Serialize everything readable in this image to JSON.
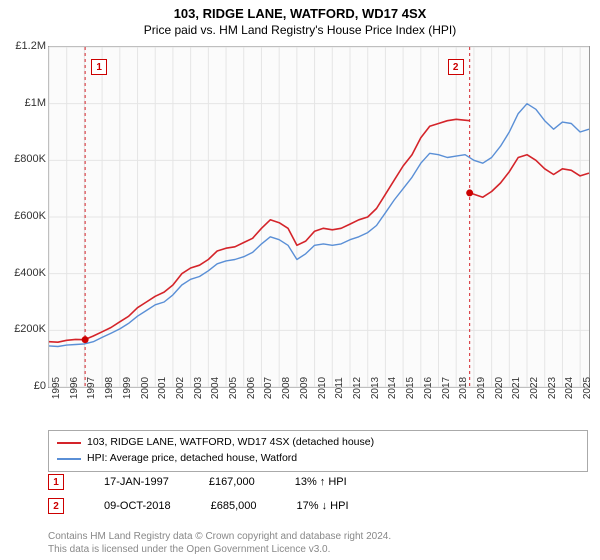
{
  "title": "103, RIDGE LANE, WATFORD, WD17 4SX",
  "subtitle": "Price paid vs. HM Land Registry's House Price Index (HPI)",
  "chart": {
    "type": "line",
    "background_color": "#fbfbfb",
    "grid_color": "#e5e5e5",
    "xlim": [
      1995,
      2025.5
    ],
    "ylim": [
      0,
      1200000
    ],
    "yticks": [
      0,
      200000,
      400000,
      600000,
      800000,
      1000000,
      1200000
    ],
    "ytick_labels": [
      "£0",
      "£200K",
      "£400K",
      "£600K",
      "£800K",
      "£1M",
      "£1.2M"
    ],
    "xticks": [
      1995,
      1996,
      1997,
      1998,
      1999,
      2000,
      2001,
      2002,
      2003,
      2004,
      2005,
      2006,
      2007,
      2008,
      2009,
      2010,
      2011,
      2012,
      2013,
      2014,
      2015,
      2016,
      2017,
      2018,
      2019,
      2020,
      2021,
      2022,
      2023,
      2024,
      2025
    ],
    "xtick_labels": [
      "1995",
      "1996",
      "1997",
      "1998",
      "1999",
      "2000",
      "2001",
      "2002",
      "2003",
      "2004",
      "2005",
      "2006",
      "2007",
      "2008",
      "2009",
      "2010",
      "2011",
      "2012",
      "2013",
      "2014",
      "2015",
      "2016",
      "2017",
      "2018",
      "2019",
      "2020",
      "2021",
      "2022",
      "2023",
      "2024",
      "2025"
    ],
    "ytick_fontsize": 11,
    "xtick_fontsize": 10,
    "series": [
      {
        "name": "103, RIDGE LANE, WATFORD, WD17 4SX (detached house)",
        "color": "#d4242a",
        "width": 1.6,
        "x": [
          1995,
          1995.5,
          1996,
          1996.5,
          1997,
          1997.5,
          1998,
          1998.5,
          1999,
          1999.5,
          2000,
          2000.5,
          2001,
          2001.5,
          2002,
          2002.5,
          2003,
          2003.5,
          2004,
          2004.5,
          2005,
          2005.5,
          2006,
          2006.5,
          2007,
          2007.5,
          2008,
          2008.5,
          2009,
          2009.5,
          2010,
          2010.5,
          2011,
          2011.5,
          2012,
          2012.5,
          2013,
          2013.5,
          2014,
          2014.5,
          2015,
          2015.5,
          2016,
          2016.5,
          2017,
          2017.5,
          2018,
          2018.76
        ],
        "y": [
          160000,
          158000,
          165000,
          168000,
          167000,
          180000,
          195000,
          210000,
          230000,
          250000,
          280000,
          300000,
          320000,
          335000,
          360000,
          400000,
          420000,
          430000,
          450000,
          480000,
          490000,
          495000,
          510000,
          525000,
          560000,
          590000,
          580000,
          560000,
          500000,
          515000,
          550000,
          560000,
          555000,
          560000,
          575000,
          590000,
          600000,
          630000,
          680000,
          730000,
          780000,
          820000,
          880000,
          920000,
          930000,
          940000,
          945000,
          940000
        ]
      },
      {
        "name": "HPI: Average price, detached house, Watford",
        "color": "#5a8fd6",
        "width": 1.4,
        "x": [
          1995,
          1995.5,
          1996,
          1996.5,
          1997,
          1997.5,
          1998,
          1998.5,
          1999,
          1999.5,
          2000,
          2000.5,
          2001,
          2001.5,
          2002,
          2002.5,
          2003,
          2003.5,
          2004,
          2004.5,
          2005,
          2005.5,
          2006,
          2006.5,
          2007,
          2007.5,
          2008,
          2008.5,
          2009,
          2009.5,
          2010,
          2010.5,
          2011,
          2011.5,
          2012,
          2012.5,
          2013,
          2013.5,
          2014,
          2014.5,
          2015,
          2015.5,
          2016,
          2016.5,
          2017,
          2017.5,
          2018,
          2018.5,
          2019,
          2019.5,
          2020,
          2020.5,
          2021,
          2021.5,
          2022,
          2022.5,
          2023,
          2023.5,
          2024,
          2024.5,
          2025,
          2025.5
        ],
        "y": [
          145000,
          143000,
          148000,
          150000,
          152000,
          160000,
          175000,
          190000,
          205000,
          225000,
          250000,
          270000,
          290000,
          300000,
          325000,
          360000,
          380000,
          390000,
          410000,
          435000,
          445000,
          450000,
          460000,
          475000,
          505000,
          530000,
          520000,
          500000,
          450000,
          470000,
          500000,
          505000,
          500000,
          505000,
          520000,
          530000,
          545000,
          570000,
          615000,
          660000,
          700000,
          740000,
          790000,
          825000,
          820000,
          810000,
          815000,
          820000,
          800000,
          790000,
          810000,
          850000,
          900000,
          965000,
          1000000,
          980000,
          940000,
          910000,
          935000,
          930000,
          900000,
          910000
        ]
      }
    ],
    "second_segment": {
      "name": "103 post-sale",
      "color": "#d4242a",
      "width": 1.6,
      "x": [
        2018.76,
        2019,
        2019.5,
        2020,
        2020.5,
        2021,
        2021.5,
        2022,
        2022.5,
        2023,
        2023.5,
        2024,
        2024.5,
        2025,
        2025.5
      ],
      "y": [
        685000,
        680000,
        670000,
        690000,
        720000,
        760000,
        810000,
        820000,
        800000,
        770000,
        750000,
        770000,
        765000,
        745000,
        755000
      ]
    },
    "sale_points": [
      {
        "x": 1997.04,
        "y": 167000,
        "label": "1"
      },
      {
        "x": 2018.76,
        "y": 685000,
        "label": "2"
      }
    ],
    "vlines": [
      {
        "x": 1997.04,
        "color": "#d4242a",
        "dash": "3,3"
      },
      {
        "x": 2018.76,
        "color": "#d4242a",
        "dash": "3,3"
      }
    ],
    "marker_dot_color": "#cc0000",
    "marker_dot_radius": 3.5
  },
  "legend": {
    "items": [
      {
        "color": "#d4242a",
        "label": "103, RIDGE LANE, WATFORD, WD17 4SX (detached house)"
      },
      {
        "color": "#5a8fd6",
        "label": "HPI: Average price, detached house, Watford"
      }
    ]
  },
  "marker_rows": [
    {
      "badge": "1",
      "date": "17-JAN-1997",
      "price": "£167,000",
      "delta": "13% ↑ HPI"
    },
    {
      "badge": "2",
      "date": "09-OCT-2018",
      "price": "£685,000",
      "delta": "17% ↓ HPI"
    }
  ],
  "footer_line1": "Contains HM Land Registry data © Crown copyright and database right 2024.",
  "footer_line2": "This data is licensed under the Open Government Licence v3.0."
}
